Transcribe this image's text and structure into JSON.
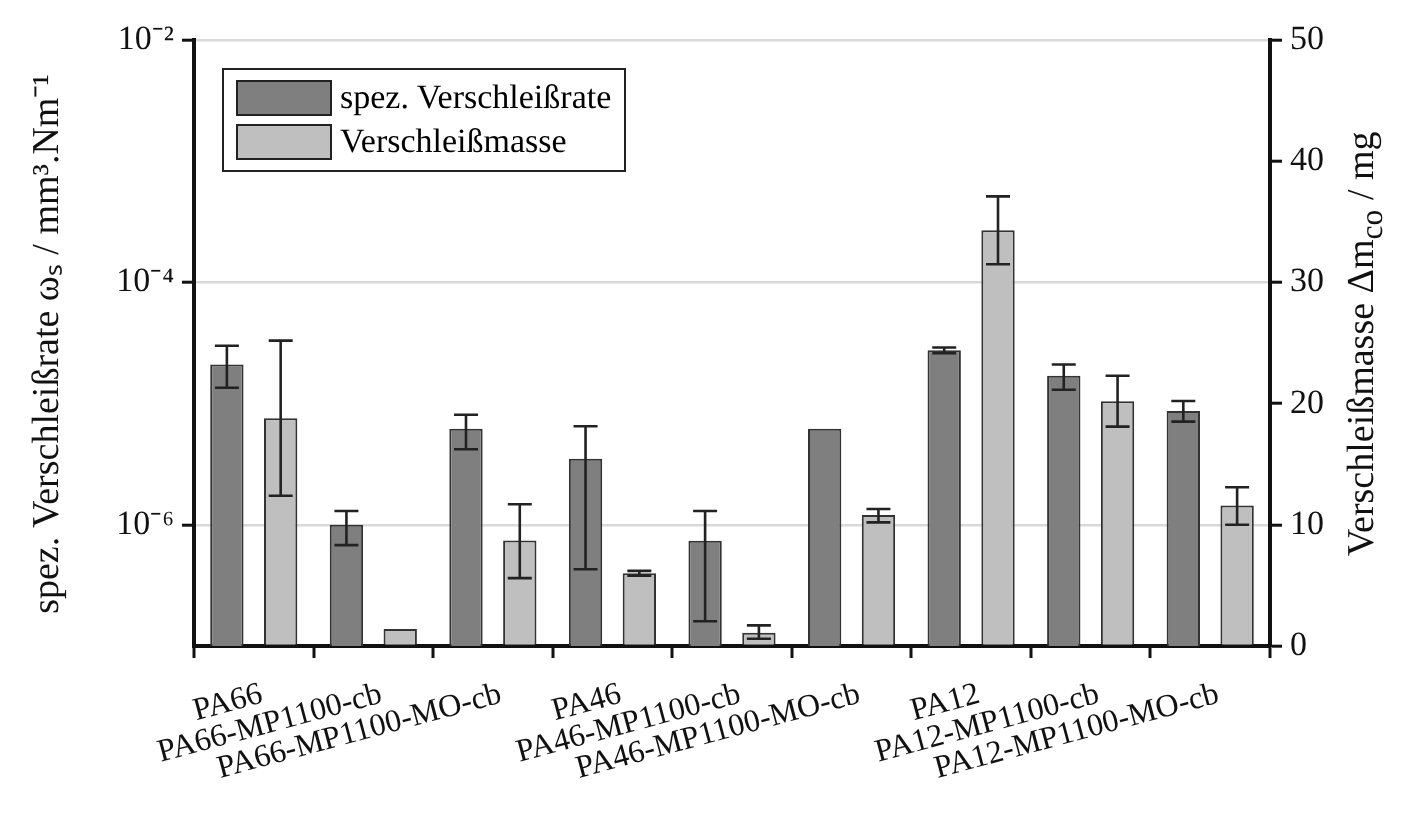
{
  "chart_data": {
    "type": "bar",
    "categories": [
      "PA66",
      "PA66-MP1100-cb",
      "PA66-MP1100-MO-cb",
      "PA46",
      "PA46-MP1100-cb",
      "PA46-MP1100-MO-cb",
      "PA12",
      "PA12-MP1100-cb",
      "PA12-MP1100-MO-cb"
    ],
    "series": [
      {
        "name": "spez. Verschleißrate",
        "color": "#7f7f7f",
        "values": [
          2.1e-05,
          1e-06,
          6.2e-06,
          3.5e-06,
          7.4e-07,
          6.2e-06,
          2.75e-05,
          1.7e-05,
          8.7e-06
        ],
        "errors": [
          [
            1.35e-05,
            3e-05
          ],
          [
            6.8e-07,
            1.3e-06
          ],
          [
            4.2e-06,
            8.1e-06
          ],
          [
            4.3e-07,
            6.5e-06
          ],
          [
            1.6e-07,
            1.3e-06
          ],
          null,
          [
            2.6e-05,
            2.9e-05
          ],
          [
            1.3e-05,
            2.1e-05
          ],
          [
            7.1e-06,
            1.05e-05
          ]
        ]
      },
      {
        "name": "Verschleißmasse",
        "color": "#bfbfbf",
        "axis": "y2",
        "values": [
          18.8,
          1.4,
          8.7,
          6.0,
          1.1,
          10.8,
          34.3,
          20.2,
          11.6
        ],
        "errors": [
          [
            12.4,
            25.2
          ],
          null,
          [
            5.6,
            11.7
          ],
          [
            5.8,
            6.2
          ],
          [
            0.6,
            1.7
          ],
          [
            10.2,
            11.3
          ],
          [
            31.5,
            37.1
          ],
          [
            18.1,
            22.3
          ],
          [
            10.0,
            13.1
          ]
        ]
      }
    ],
    "ylabel": "spez. Verschleißrate ωₛ / mm³.Nm⁻¹",
    "y2label": "Verschleißmasse Δm$_{co}$ / mg",
    "log": "y",
    "ylim": [
      1e-07,
      0.01
    ],
    "yticks": [
      {
        "value": 1e-06,
        "label": "10⁻⁶"
      },
      {
        "value": 0.0001,
        "label": "10⁻⁴"
      },
      {
        "value": 0.01,
        "label": "10⁻²"
      }
    ],
    "y2lim": [
      0,
      50
    ],
    "y2ticks": [
      0,
      10,
      20,
      30,
      40,
      50
    ],
    "grid": "y",
    "legend": "top left"
  }
}
